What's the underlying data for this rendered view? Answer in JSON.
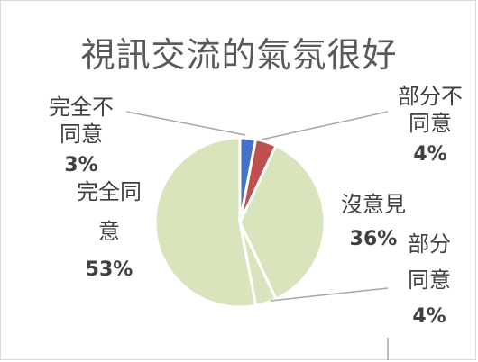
{
  "chart_data": {
    "type": "pie",
    "title": "視訊交流的氣氛很好",
    "slices": [
      {
        "label": "完全不同意",
        "display_label_lines": [
          "完全不",
          "同意"
        ],
        "percent": "3%",
        "value": 3,
        "color": "#4472c4"
      },
      {
        "label": "部分不同意",
        "display_label_lines": [
          "部分不",
          "同意"
        ],
        "percent": "4%",
        "value": 4,
        "color": "#c0504d"
      },
      {
        "label": "沒意見",
        "display_label_lines": [
          "沒意見"
        ],
        "percent": "36%",
        "value": 36,
        "color": "#d7e4bc"
      },
      {
        "label": "部分同意",
        "display_label_lines": [
          "部分",
          "同意"
        ],
        "percent": "4%",
        "value": 4,
        "color": "#d7e4bc"
      },
      {
        "label": "完全同意",
        "display_label_lines": [
          "完全同",
          "意"
        ],
        "percent": "53%",
        "value": 53,
        "color": "#d7e4bc"
      }
    ],
    "start_angle_deg": 0,
    "direction": "clockwise",
    "legend": "none",
    "data_labels": "outside",
    "slice_separator_color": "#ffffff"
  }
}
